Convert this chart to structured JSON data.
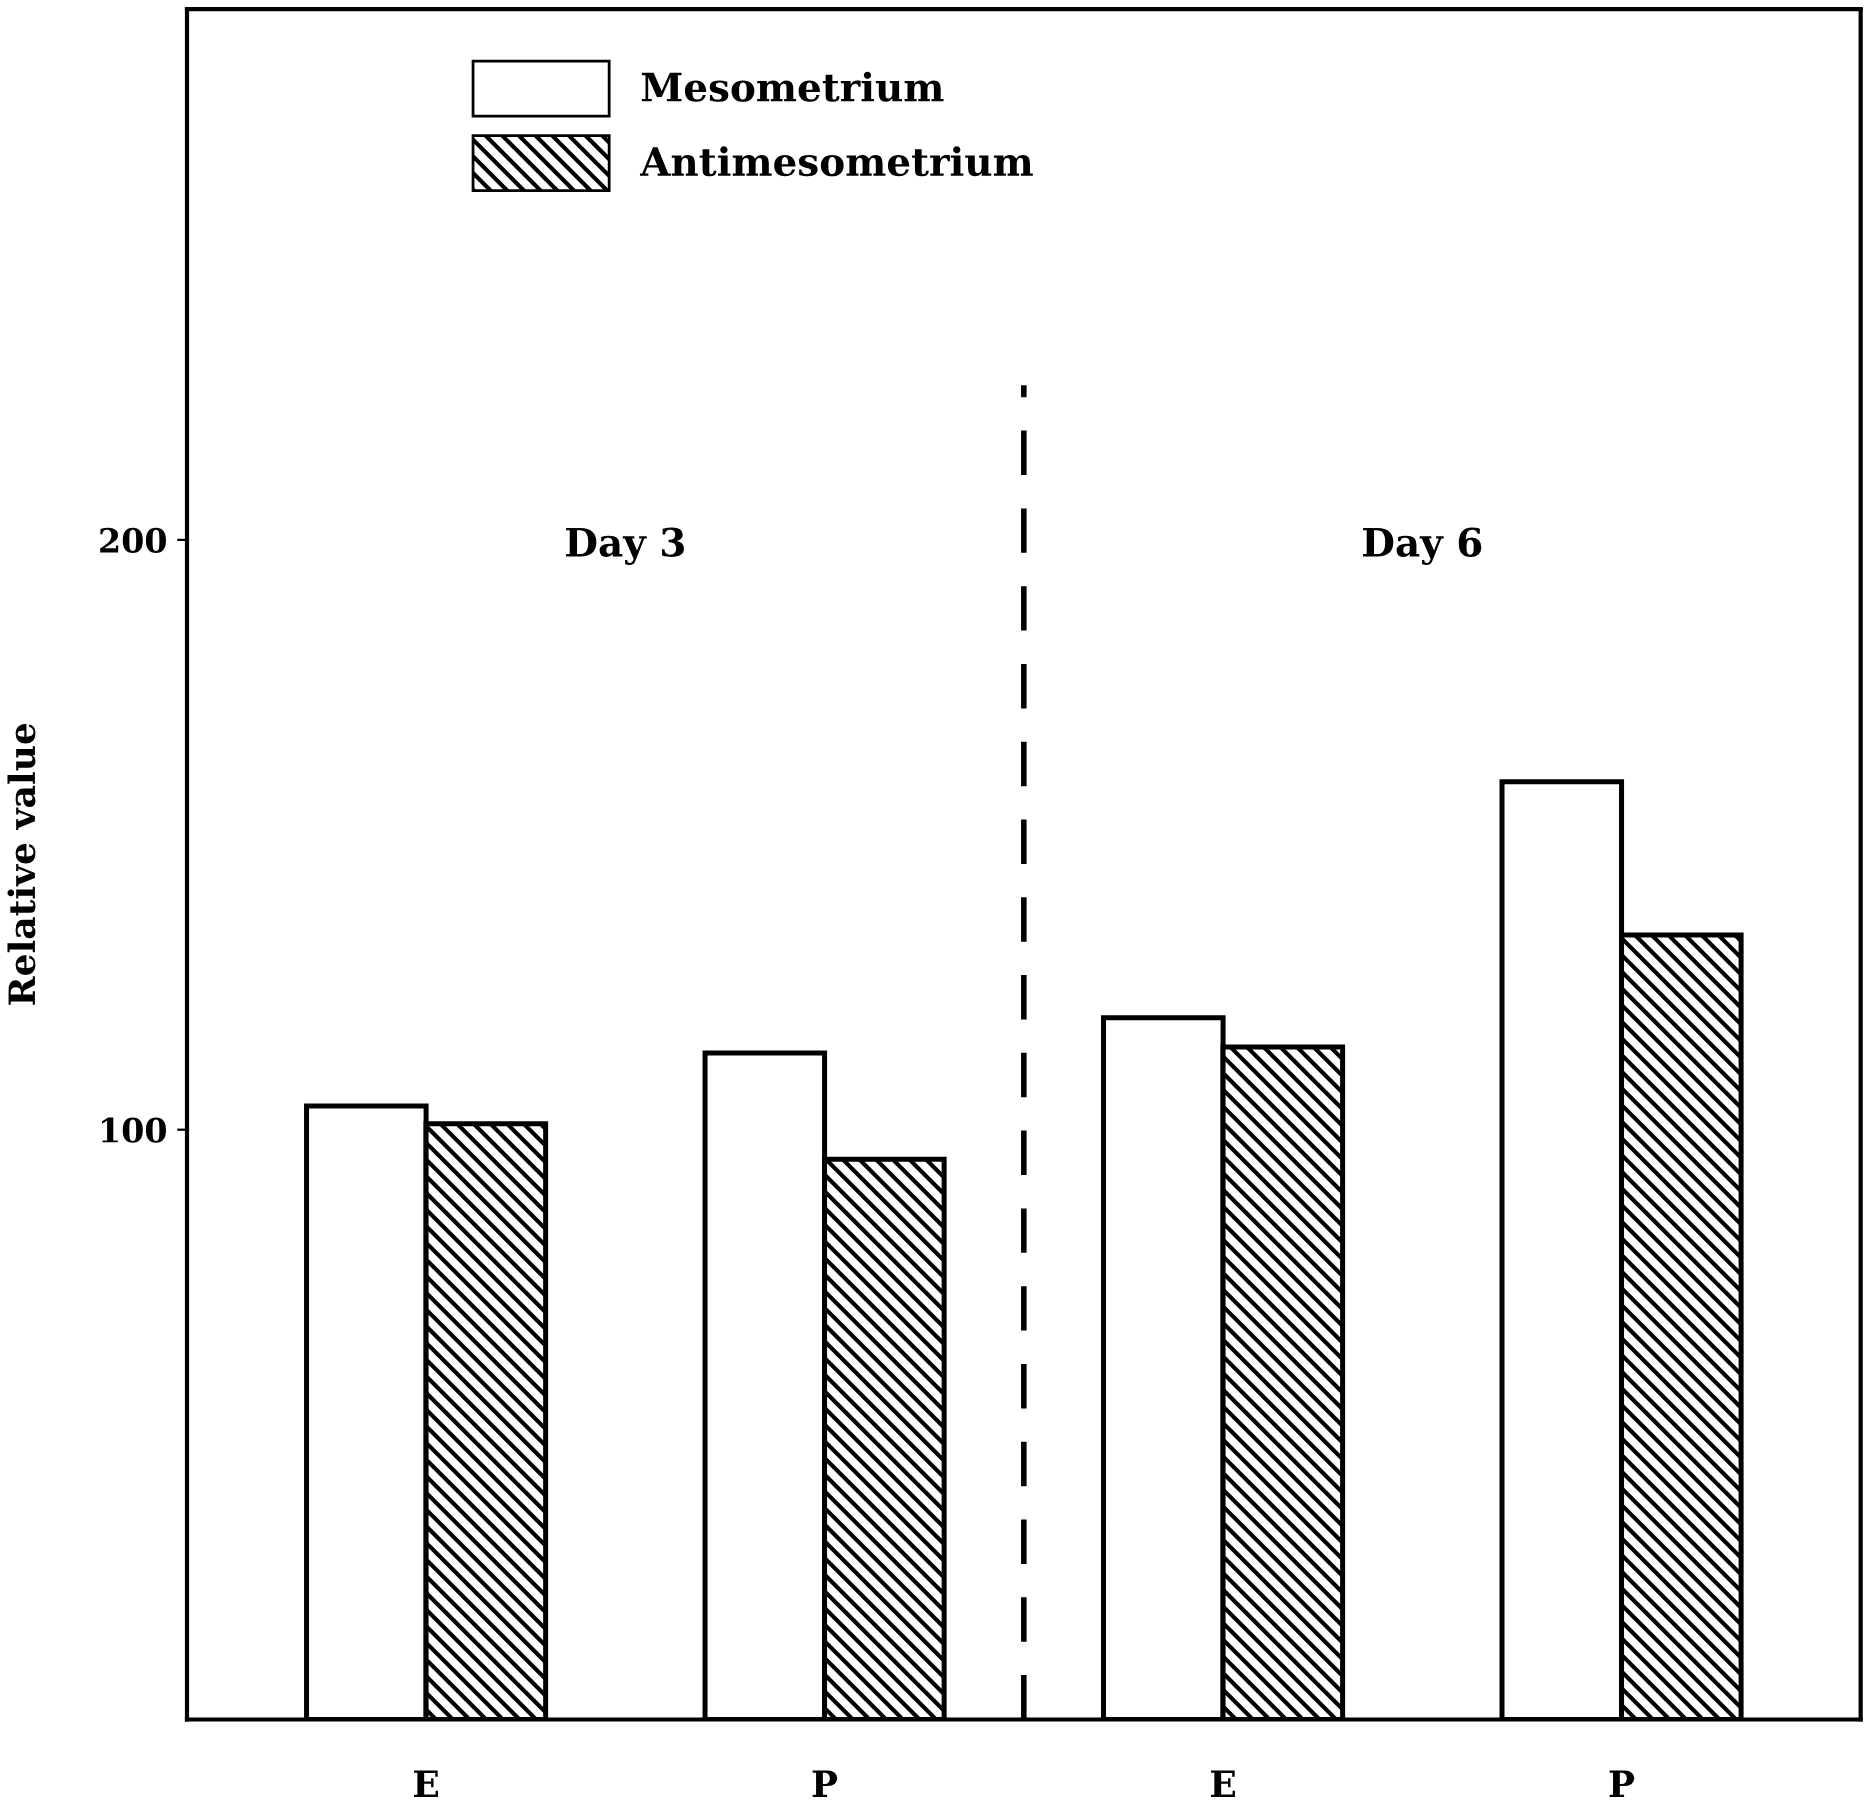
{
  "chart_data": {
    "type": "bar",
    "ylabel": "Relative value",
    "categories": [
      "E",
      "P",
      "E",
      "P"
    ],
    "series": [
      {
        "name": "Mesometrium",
        "color": "#ffffff",
        "values": [
          104,
          113,
          119,
          159
        ]
      },
      {
        "name": "Antimesometrium",
        "color": "#000000",
        "values": [
          101,
          95,
          114,
          133
        ]
      }
    ],
    "ylim": [
      0,
      290
    ],
    "yticks": [
      100,
      200
    ],
    "grid": false,
    "legend": "top left",
    "annotations": [
      "Day 3",
      "Day 6"
    ]
  }
}
